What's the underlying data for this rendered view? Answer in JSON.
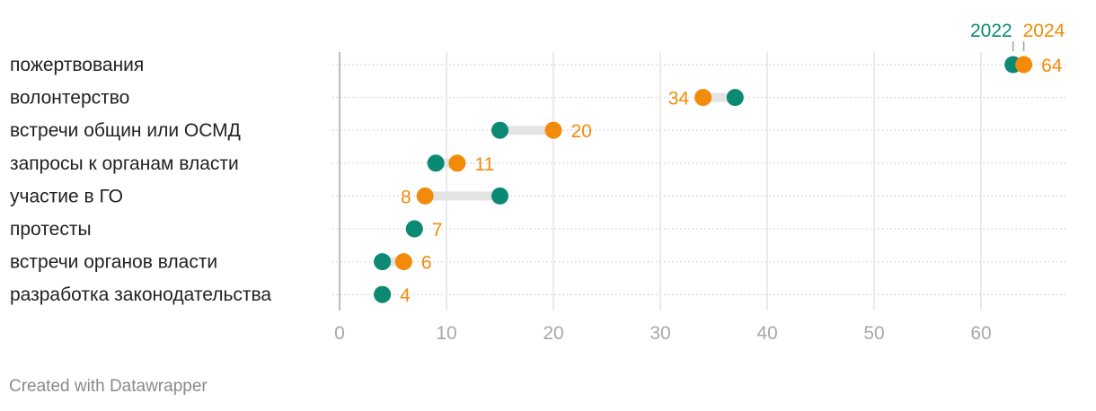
{
  "chart_data": {
    "type": "dot-range",
    "categories": [
      "пожертвования",
      "волонтерство",
      "встречи общин или ОСМД",
      "запросы к органам власти",
      "участие в ГО",
      "протесты",
      "встречи органов власти",
      "разработка законодательства"
    ],
    "series": [
      {
        "name": "2022",
        "color": "#0b8a73",
        "values": [
          63,
          37,
          15,
          9,
          15,
          7,
          4,
          4
        ]
      },
      {
        "name": "2024",
        "color": "#f38b0a",
        "values": [
          64,
          34,
          20,
          11,
          8,
          7,
          6,
          4
        ]
      }
    ],
    "value_labels": [
      "64",
      "34",
      "20",
      "11",
      "8",
      "7",
      "6",
      "4"
    ],
    "x_ticks": [
      0,
      10,
      20,
      30,
      40,
      50,
      60
    ],
    "xlim": [
      0,
      68
    ],
    "grid": true,
    "legend_position": "top-right"
  },
  "footer": {
    "credit": "Created with Datawrapper"
  }
}
